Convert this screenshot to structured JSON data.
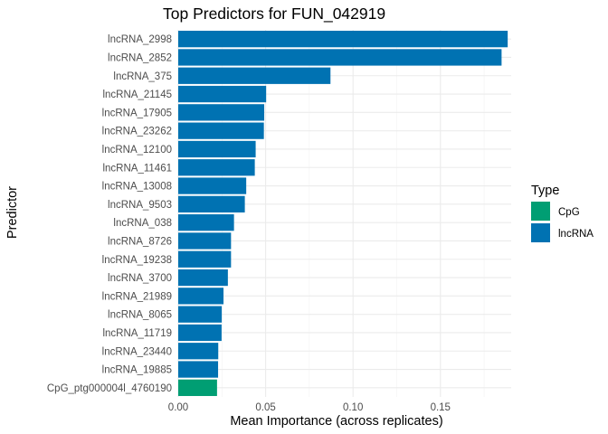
{
  "chart_data": {
    "type": "bar",
    "orientation": "horizontal",
    "title": "Top Predictors for FUN_042919",
    "xlabel": "Mean Importance (across replicates)",
    "ylabel": "Predictor",
    "xlim": [
      0,
      0.1905
    ],
    "xticks": [
      0,
      0.05,
      0.1,
      0.15
    ],
    "xtick_labels": [
      "0.00",
      "0.05",
      "0.10",
      "0.15"
    ],
    "grid": true,
    "legend": {
      "title": "Type",
      "placement": "right",
      "entries": [
        {
          "label": "CpG",
          "color": "#009E73"
        },
        {
          "label": "lncRNA",
          "color": "#0072B2"
        }
      ]
    },
    "categories": [
      "lncRNA_2998",
      "lncRNA_2852",
      "lncRNA_375",
      "lncRNA_21145",
      "lncRNA_17905",
      "lncRNA_23262",
      "lncRNA_12100",
      "lncRNA_11461",
      "lncRNA_13008",
      "lncRNA_9503",
      "lncRNA_038",
      "lncRNA_8726",
      "lncRNA_19238",
      "lncRNA_3700",
      "lncRNA_21989",
      "lncRNA_8065",
      "lncRNA_11719",
      "lncRNA_23440",
      "lncRNA_19885",
      "CpG_ptg000004l_4760190"
    ],
    "values": [
      0.1885,
      0.185,
      0.0871,
      0.0503,
      0.0492,
      0.049,
      0.0443,
      0.0438,
      0.0389,
      0.0381,
      0.0319,
      0.0302,
      0.0302,
      0.0284,
      0.0259,
      0.0249,
      0.0248,
      0.0229,
      0.0228,
      0.0222
    ],
    "types": [
      "lncRNA",
      "lncRNA",
      "lncRNA",
      "lncRNA",
      "lncRNA",
      "lncRNA",
      "lncRNA",
      "lncRNA",
      "lncRNA",
      "lncRNA",
      "lncRNA",
      "lncRNA",
      "lncRNA",
      "lncRNA",
      "lncRNA",
      "lncRNA",
      "lncRNA",
      "lncRNA",
      "lncRNA",
      "CpG"
    ]
  }
}
